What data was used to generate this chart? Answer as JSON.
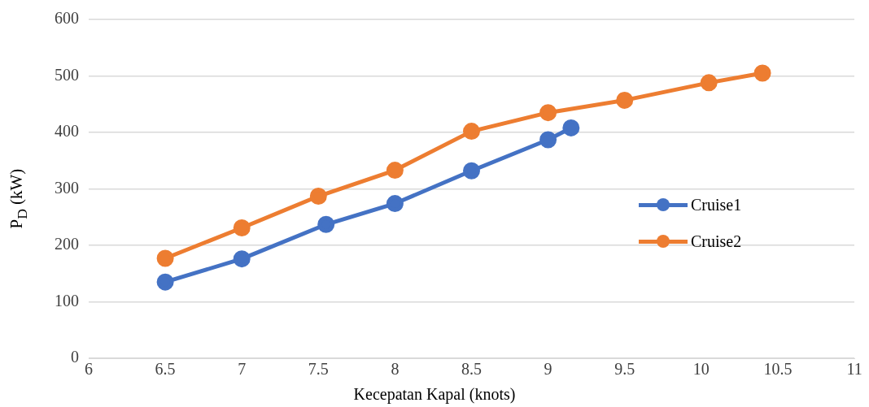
{
  "chart_data": {
    "type": "line",
    "xlabel": "Kecepatan Kapal (knots)",
    "ylabel": "P$_{D}$ (kW)",
    "xlim": [
      6,
      11
    ],
    "xticks": [
      6,
      6.5,
      7,
      7.5,
      8,
      8.5,
      9,
      9.5,
      10,
      10.5,
      11
    ],
    "ylim": [
      0,
      600
    ],
    "yticks": [
      0,
      100,
      200,
      300,
      400,
      500,
      600
    ],
    "grid": "y",
    "legend": "right",
    "marker": "circle",
    "line_style": "solid",
    "series": [
      {
        "name": "Cruise1",
        "color": "#4472c4",
        "x": [
          6.5,
          7.0,
          7.55,
          8.0,
          8.5,
          9.0,
          9.15
        ],
        "values": [
          135,
          176,
          237,
          274,
          332,
          387,
          408
        ]
      },
      {
        "name": "Cruise2",
        "color": "#ed7d31",
        "x": [
          6.5,
          7.0,
          7.5,
          8.0,
          8.5,
          9.0,
          9.5,
          10.05,
          10.4
        ],
        "values": [
          177,
          231,
          287,
          333,
          402,
          435,
          457,
          488,
          505
        ]
      }
    ]
  }
}
